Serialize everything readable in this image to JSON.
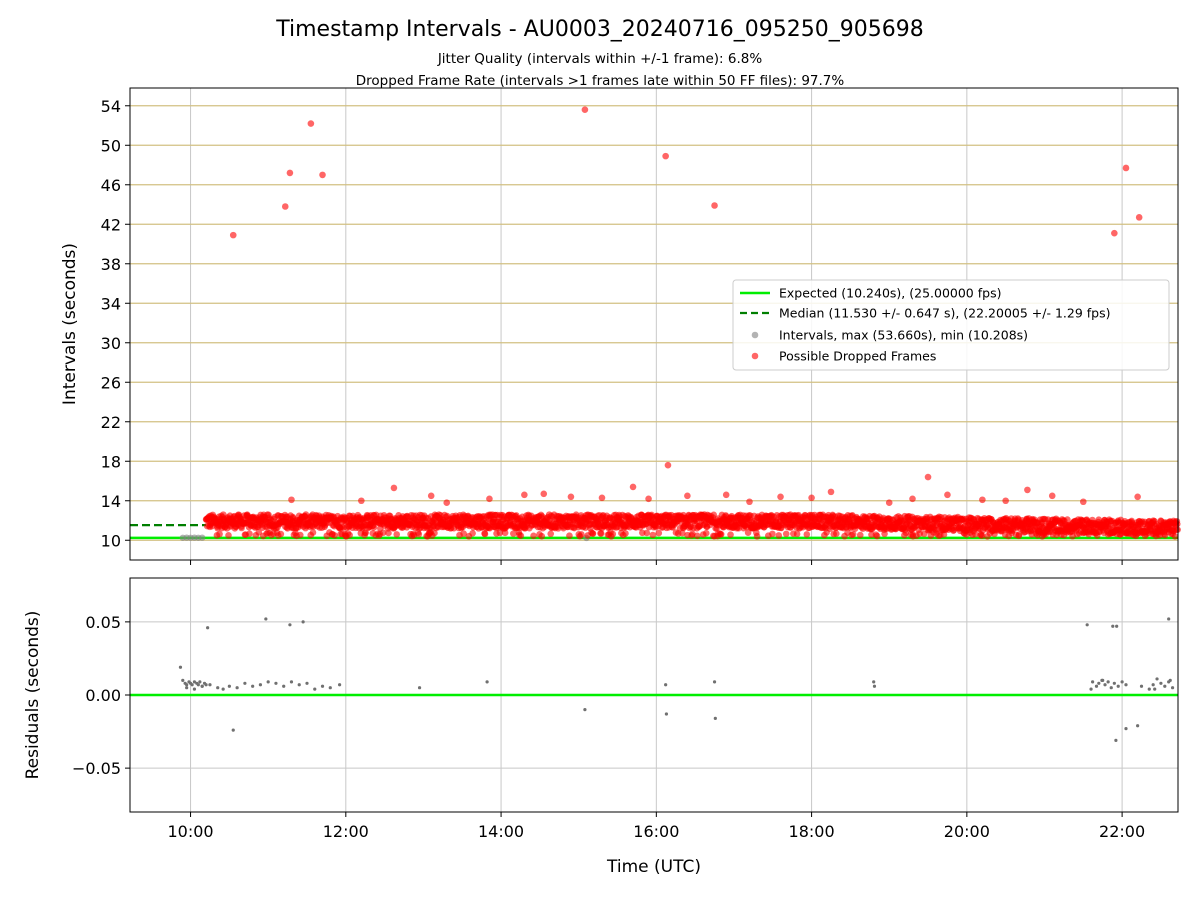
{
  "chart_data": [
    {
      "type": "scatter",
      "title": "Timestamp Intervals - AU0003_20240716_095250_905698",
      "subtitle_lines": [
        "Jitter Quality (intervals within +/-1 frame): 6.8%",
        "Dropped Frame Rate (intervals >1 frames late within 50 FF files): 97.7%"
      ],
      "xlabel": "",
      "ylabel": "Intervals (seconds)",
      "x_unit": "hours UTC",
      "xlim": [
        9.22,
        22.72
      ],
      "ylim": [
        8.0,
        55.8
      ],
      "yticks": [
        10,
        14,
        18,
        22,
        26,
        30,
        34,
        38,
        42,
        46,
        50,
        54
      ],
      "ytick_labels": [
        "10",
        "14",
        "18",
        "22",
        "26",
        "30",
        "34",
        "38",
        "42",
        "46",
        "50",
        "54"
      ],
      "grid": true,
      "legend_position": "center-right",
      "legend": [
        "Expected (10.240s), (25.00000 fps)",
        "Median (11.530 +/- 0.647 s), (22.20005 +/- 1.29 fps)",
        "Intervals, max (53.660s), min (10.208s)",
        "Possible Dropped Frames"
      ],
      "expected_line": {
        "y": 10.24,
        "color": "#00ee00"
      },
      "median_line": {
        "y": 11.53,
        "x_end": 10.2,
        "color": "#007f00"
      },
      "interval_points": {
        "color": "#808080",
        "x": [
          9.9,
          9.95,
          10.0,
          10.05,
          10.1,
          10.15,
          15.1
        ],
        "y": [
          10.25,
          10.26,
          10.25,
          10.26,
          10.25,
          10.26,
          10.23
        ]
      },
      "dropped_points": {
        "color": "#ff0000",
        "band": {
          "x_start": 10.2,
          "x_end": 22.72,
          "y_low": 10.4,
          "y_high": 13.1
        },
        "outliers_x": [
          10.55,
          11.22,
          11.28,
          11.55,
          11.7,
          15.08,
          16.12,
          16.15,
          16.75,
          21.9,
          22.05,
          22.22,
          12.62,
          19.5,
          20.78,
          15.7,
          11.3,
          13.1,
          13.85,
          14.55,
          14.9,
          15.3,
          16.4,
          17.6,
          18.0,
          18.25,
          19.3,
          19.75,
          20.2,
          21.1,
          22.2,
          12.2,
          13.3,
          14.3,
          15.9,
          16.9,
          17.2,
          19.0,
          20.5,
          21.5
        ],
        "outliers_y": [
          40.9,
          43.8,
          47.2,
          52.2,
          47.0,
          53.6,
          48.9,
          17.6,
          43.9,
          41.1,
          47.7,
          42.7,
          15.3,
          16.4,
          15.1,
          15.4,
          14.1,
          14.5,
          14.2,
          14.7,
          14.4,
          14.3,
          14.5,
          14.4,
          14.3,
          14.9,
          14.2,
          14.6,
          14.1,
          14.5,
          14.4,
          14.0,
          13.8,
          14.6,
          14.2,
          14.6,
          13.9,
          13.8,
          14.0,
          13.9
        ]
      }
    },
    {
      "type": "scatter",
      "title": "",
      "xlabel": "Time (UTC)",
      "ylabel": "Residuals (seconds)",
      "x_unit": "hours UTC",
      "xlim": [
        9.22,
        22.72
      ],
      "ylim": [
        -0.08,
        0.08
      ],
      "xticks": [
        10,
        12,
        14,
        16,
        18,
        20,
        22
      ],
      "xtick_labels": [
        "10:00",
        "12:00",
        "14:00",
        "16:00",
        "18:00",
        "20:00",
        "22:00"
      ],
      "yticks": [
        0.05,
        0.0,
        -0.05
      ],
      "ytick_labels": [
        "0.05",
        "0.00",
        "−0.05"
      ],
      "grid": true,
      "zero_line": {
        "y": 0.0,
        "color": "#00ee00"
      },
      "residual_points": {
        "color": "#707070",
        "x": [
          9.87,
          9.9,
          9.93,
          9.95,
          9.98,
          10.0,
          10.02,
          10.05,
          10.08,
          10.1,
          10.12,
          10.15,
          10.18,
          10.2,
          9.95,
          10.05,
          10.15,
          10.25,
          10.35,
          10.42,
          10.5,
          10.6,
          10.7,
          10.8,
          10.9,
          11.0,
          11.1,
          11.2,
          11.3,
          11.4,
          11.5,
          11.6,
          11.7,
          11.8,
          11.92,
          10.22,
          10.97,
          11.28,
          11.45,
          10.55,
          12.95,
          13.82,
          15.08,
          16.12,
          16.13,
          16.75,
          16.76,
          18.8,
          18.81,
          21.55,
          21.62,
          21.67,
          21.7,
          21.74,
          21.78,
          21.82,
          21.86,
          21.9,
          21.95,
          22.0,
          22.05,
          21.88,
          21.93,
          21.92,
          22.05,
          22.2,
          22.35,
          22.4,
          22.45,
          22.5,
          22.55,
          22.6,
          22.65,
          22.6,
          22.62,
          22.42,
          22.25,
          21.6,
          21.75
        ],
        "y": [
          0.019,
          0.01,
          0.008,
          0.007,
          0.009,
          0.008,
          0.007,
          0.009,
          0.008,
          0.007,
          0.009,
          0.006,
          0.008,
          0.007,
          0.005,
          0.004,
          0.006,
          0.007,
          0.005,
          0.004,
          0.006,
          0.005,
          0.008,
          0.006,
          0.007,
          0.009,
          0.008,
          0.006,
          0.009,
          0.007,
          0.008,
          0.004,
          0.006,
          0.005,
          0.007,
          0.046,
          0.052,
          0.048,
          0.05,
          -0.024,
          0.005,
          0.009,
          -0.01,
          0.007,
          -0.013,
          0.009,
          -0.016,
          0.009,
          0.006,
          0.048,
          0.009,
          0.006,
          0.008,
          0.01,
          0.007,
          0.009,
          0.005,
          0.008,
          0.006,
          0.009,
          0.007,
          0.047,
          0.047,
          -0.031,
          -0.023,
          -0.021,
          0.004,
          0.007,
          0.011,
          0.008,
          0.006,
          0.009,
          0.005,
          0.052,
          0.01,
          0.004,
          0.006,
          0.004,
          0.01
        ]
      }
    }
  ]
}
